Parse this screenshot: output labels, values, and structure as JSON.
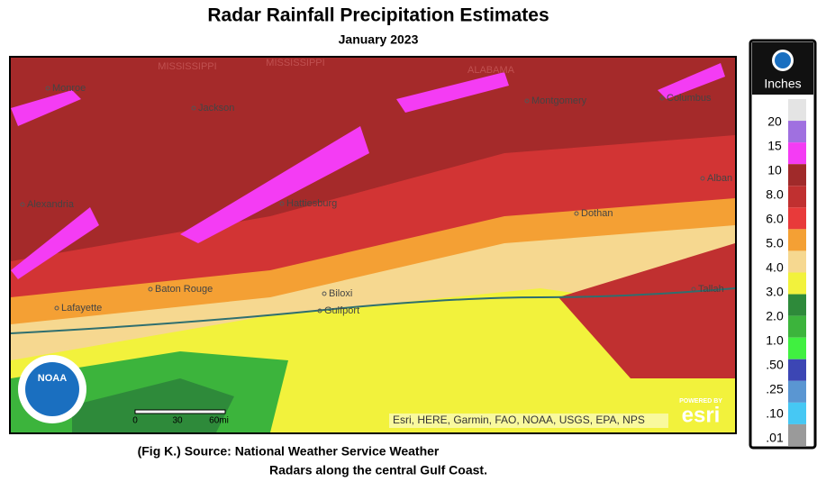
{
  "title": "Radar Rainfall Precipitation Estimates",
  "subtitle": "January 2023",
  "caption": [
    "(Fig K.) Source: National Weather Service Weather",
    "Radars along the central Gulf Coast."
  ],
  "legend": {
    "unit": "Inches",
    "labels": [
      "20",
      "15",
      "10",
      "8.0",
      "6.0",
      "5.0",
      "4.0",
      "3.0",
      "2.0",
      "1.0",
      ".50",
      ".25",
      ".10",
      ".01"
    ],
    "colors": [
      "#e4e4e4",
      "#a070e0",
      "#f43cf4",
      "#a02a2a",
      "#c03030",
      "#e83a3a",
      "#f4a034",
      "#f6d890",
      "#f2f23c",
      "#2e8a3a",
      "#3cb43c",
      "#40f040",
      "#3c46b4",
      "#5a96d2",
      "#46c8f4",
      "#9a9a9a"
    ]
  },
  "map": {
    "states": [
      "MISSISSIPPI",
      "MISSISSIPPI",
      "ALABAMA"
    ],
    "places": [
      "Monroe",
      "Jackson",
      "Alexandria",
      "Hattiesburg",
      "Baton Rouge",
      "Lafayette",
      "Biloxi",
      "Gulfport",
      "Montgomery",
      "Columbus",
      "Dothan",
      "Alban",
      "Tallah"
    ],
    "scale": [
      "0",
      "30",
      "60mi"
    ],
    "attribution": "Esri, HERE, Garmin, FAO, NOAA, USGS, EPA, NPS",
    "powered": "POWERED BY",
    "logo": "esri",
    "noaa": "NOAA"
  }
}
